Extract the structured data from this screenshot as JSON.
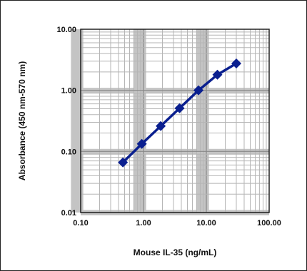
{
  "chart_data": {
    "type": "scatter",
    "xlabel": "Mouse IL-35 (ng/mL)",
    "ylabel": "Absorbance (450 nm-570 nm)",
    "xscale": "log",
    "yscale": "log",
    "xlim": [
      0.1,
      100
    ],
    "ylim": [
      0.01,
      10
    ],
    "xticks": [
      "0.10",
      "1.00",
      "10.00",
      "100.00"
    ],
    "yticks": [
      "0.01",
      "0.10",
      "1.00",
      "10.00"
    ],
    "grid": true,
    "series": [
      {
        "x": [
          0.47,
          0.94,
          1.88,
          3.75,
          7.5,
          15,
          30
        ],
        "y": [
          0.066,
          0.133,
          0.26,
          0.51,
          1.0,
          1.8,
          2.75
        ],
        "color": "#0a1f8f"
      }
    ]
  }
}
